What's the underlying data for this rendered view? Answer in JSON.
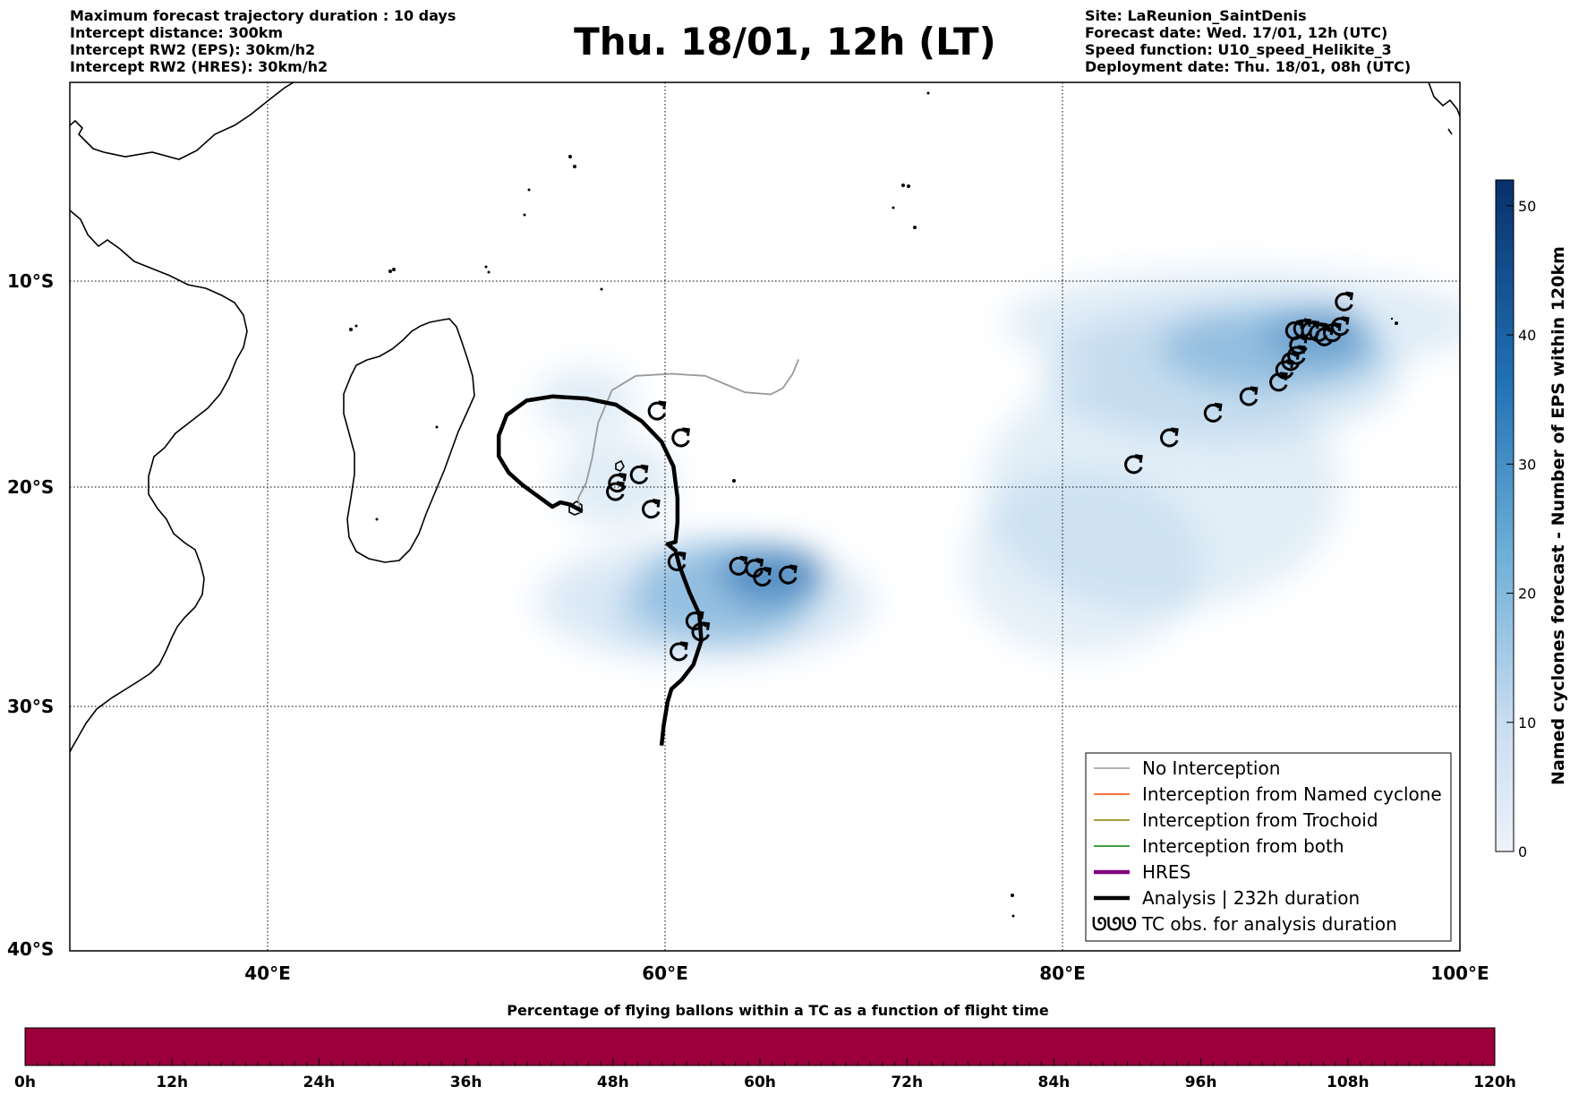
{
  "header_left": [
    "Maximum forecast trajectory duration : 10 days",
    "Intercept distance: 300km",
    "Intercept RW2 (EPS):  30km/h2",
    "Intercept RW2 (HRES): 30km/h2"
  ],
  "header_right": [
    "Site: LaReunion_SaintDenis",
    "Forecast date: Wed. 17/01, 12h (UTC)",
    "Speed function: U10_speed_Helikite_3",
    "Deployment date: Thu. 18/01, 08h (UTC)"
  ],
  "title": "Thu. 18/01, 12h (LT)",
  "map": {
    "lat_ticks": [
      "10°S",
      "20°S",
      "30°S",
      "40°S"
    ],
    "lon_ticks": [
      "40°E",
      "60°E",
      "80°E",
      "100°E"
    ],
    "extent": {
      "lon_min": 30,
      "lon_max": 100,
      "lat_min": -40,
      "lat_max": 0
    },
    "colors": {
      "analysis": "#000000",
      "no_interception": "#999999",
      "hres": "#800080",
      "named": "#ff4500",
      "trochoid": "#808000",
      "both": "#008000"
    }
  },
  "legend": [
    {
      "label": "No Interception",
      "color": "#999999",
      "style": "thin"
    },
    {
      "label": "Interception from Named cyclone",
      "color": "#ff4500",
      "style": "thin"
    },
    {
      "label": "Interception from Trochoid",
      "color": "#808000",
      "style": "thin"
    },
    {
      "label": "Interception from both",
      "color": "#008000",
      "style": "thin"
    },
    {
      "label": "HRES",
      "color": "#800080",
      "style": "thick"
    },
    {
      "label": "Analysis | 232h duration",
      "color": "#000000",
      "style": "thick"
    },
    {
      "label": "TC obs. for analysis duration",
      "color": "#000000",
      "style": "symbol",
      "symbol": "ᘎᘎᘎ"
    }
  ],
  "colorbar": {
    "label": "Named cyclones forecast - Number of EPS within 120km",
    "ticks": [
      "0",
      "10",
      "20",
      "30",
      "40",
      "50"
    ],
    "min": 0,
    "max": 52,
    "color_low": "#e7eef8",
    "color_high": "#0b3170"
  },
  "flight_bar": {
    "title": "Percentage of flying ballons within a TC as a function of flight time",
    "ticks": [
      "0h",
      "12h",
      "24h",
      "36h",
      "48h",
      "60h",
      "72h",
      "84h",
      "96h",
      "108h",
      "120h"
    ],
    "color": "#9b003a"
  },
  "tc_obs": [
    {
      "lon": 59.6,
      "lat": -16.3
    },
    {
      "lon": 60.8,
      "lat": -17.6
    },
    {
      "lon": 58.7,
      "lat": -19.4
    },
    {
      "lon": 57.6,
      "lat": -19.8
    },
    {
      "lon": 57.5,
      "lat": -20.2
    },
    {
      "lon": 59.3,
      "lat": -21.0
    },
    {
      "lon": 60.6,
      "lat": -23.4
    },
    {
      "lon": 63.7,
      "lat": -23.6
    },
    {
      "lon": 64.5,
      "lat": -23.7
    },
    {
      "lon": 64.9,
      "lat": -24.1
    },
    {
      "lon": 66.2,
      "lat": -24.0
    },
    {
      "lon": 61.5,
      "lat": -26.1
    },
    {
      "lon": 61.8,
      "lat": -26.6
    },
    {
      "lon": 60.7,
      "lat": -27.5
    },
    {
      "lon": 83.6,
      "lat": -18.9
    },
    {
      "lon": 85.4,
      "lat": -17.6
    },
    {
      "lon": 87.6,
      "lat": -16.4
    },
    {
      "lon": 89.4,
      "lat": -15.6
    },
    {
      "lon": 90.9,
      "lat": -14.9
    },
    {
      "lon": 91.2,
      "lat": -14.3
    },
    {
      "lon": 91.5,
      "lat": -13.9
    },
    {
      "lon": 91.8,
      "lat": -13.6
    },
    {
      "lon": 91.9,
      "lat": -13.1
    },
    {
      "lon": 91.7,
      "lat": -12.4
    },
    {
      "lon": 92.1,
      "lat": -12.3
    },
    {
      "lon": 92.5,
      "lat": -12.4
    },
    {
      "lon": 92.9,
      "lat": -12.5
    },
    {
      "lon": 93.2,
      "lat": -12.7
    },
    {
      "lon": 93.6,
      "lat": -12.5
    },
    {
      "lon": 94.0,
      "lat": -12.2
    },
    {
      "lon": 94.2,
      "lat": -11.0
    }
  ],
  "analysis_track": [
    [
      59.8,
      -31.6
    ],
    [
      59.9,
      -30.8
    ],
    [
      60.1,
      -29.8
    ],
    [
      60.3,
      -29.2
    ],
    [
      60.8,
      -28.8
    ],
    [
      61.4,
      -28.1
    ],
    [
      61.8,
      -27.0
    ],
    [
      61.7,
      -25.8
    ],
    [
      61.2,
      -24.8
    ],
    [
      60.7,
      -23.6
    ],
    [
      60.5,
      -22.9
    ],
    [
      60.1,
      -22.6
    ],
    [
      60.5,
      -22.5
    ],
    [
      60.6,
      -21.6
    ],
    [
      60.6,
      -20.5
    ],
    [
      60.4,
      -19.0
    ],
    [
      59.8,
      -17.8
    ],
    [
      58.8,
      -16.8
    ],
    [
      57.5,
      -16.0
    ],
    [
      56.0,
      -15.7
    ],
    [
      54.3,
      -15.6
    ],
    [
      53.0,
      -15.8
    ],
    [
      52.0,
      -16.5
    ],
    [
      51.6,
      -17.5
    ],
    [
      51.6,
      -18.5
    ],
    [
      52.1,
      -19.3
    ],
    [
      52.8,
      -19.9
    ],
    [
      53.7,
      -20.5
    ],
    [
      54.3,
      -20.9
    ],
    [
      54.7,
      -20.7
    ],
    [
      55.2,
      -20.8
    ],
    [
      55.6,
      -21.0
    ],
    [
      55.8,
      -21.1
    ]
  ],
  "no_interception_track": [
    [
      55.7,
      -21.2
    ],
    [
      55.6,
      -20.5
    ],
    [
      56.0,
      -19.8
    ],
    [
      56.3,
      -18.6
    ],
    [
      56.6,
      -16.9
    ],
    [
      57.3,
      -15.3
    ],
    [
      58.5,
      -14.6
    ],
    [
      60.3,
      -14.5
    ],
    [
      62.0,
      -14.6
    ],
    [
      63.0,
      -15.0
    ],
    [
      64.0,
      -15.4
    ],
    [
      65.3,
      -15.5
    ],
    [
      65.9,
      -15.2
    ],
    [
      66.4,
      -14.5
    ],
    [
      66.7,
      -13.8
    ]
  ],
  "density": [
    {
      "lon": 65.3,
      "lat": -24.0,
      "rx": 2.6,
      "ry": 1.3,
      "a": 0.85
    },
    {
      "lon": 63.0,
      "lat": -24.8,
      "rx": 4.5,
      "ry": 2.4,
      "a": 0.45
    },
    {
      "lon": 60.5,
      "lat": -25.6,
      "rx": 3.2,
      "ry": 1.6,
      "a": 0.3
    },
    {
      "lon": 62.0,
      "lat": -25.2,
      "rx": 8.5,
      "ry": 3.0,
      "a": 0.2
    },
    {
      "lon": 57.5,
      "lat": -19.8,
      "rx": 3.0,
      "ry": 2.2,
      "a": 0.15
    },
    {
      "lon": 56.0,
      "lat": -15.8,
      "rx": 2.6,
      "ry": 1.6,
      "a": 0.15
    },
    {
      "lon": 92.7,
      "lat": -12.6,
      "rx": 2.6,
      "ry": 1.2,
      "a": 0.85
    },
    {
      "lon": 90.5,
      "lat": -13.3,
      "rx": 5.5,
      "ry": 2.0,
      "a": 0.45
    },
    {
      "lon": 88.0,
      "lat": -14.5,
      "rx": 9.0,
      "ry": 3.2,
      "a": 0.25
    },
    {
      "lon": 89.0,
      "lat": -12.0,
      "rx": 12.0,
      "ry": 2.6,
      "a": 0.15
    },
    {
      "lon": 85.0,
      "lat": -20.0,
      "rx": 9.0,
      "ry": 6.0,
      "a": 0.14
    },
    {
      "lon": 81.0,
      "lat": -23.5,
      "rx": 6.0,
      "ry": 4.5,
      "a": 0.12
    }
  ]
}
